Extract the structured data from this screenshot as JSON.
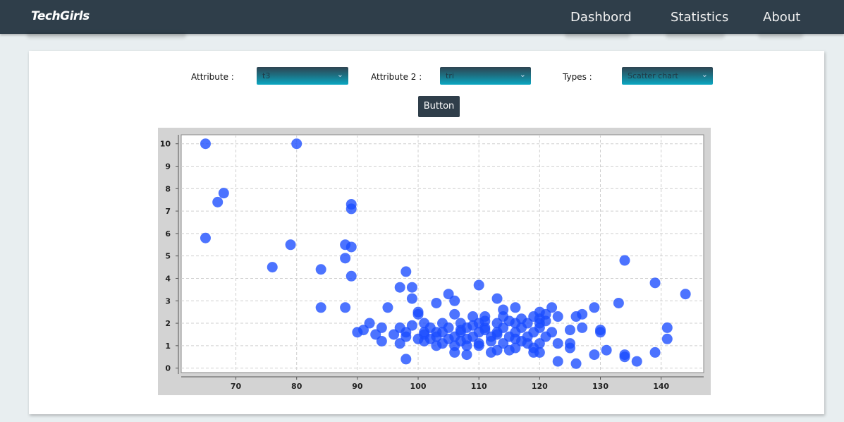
{
  "navbar": {
    "logo": "TechGirls",
    "items": [
      "Dashbord",
      "Statistics",
      "About"
    ]
  },
  "form": {
    "attribute1_label": "Attribute :",
    "attribute1_value": "t3",
    "attribute2_label": "Attribute 2 :",
    "attribute2_value": "tri",
    "types_label": "Types :",
    "types_value": "Scatter chart",
    "button_label": "Button"
  },
  "colors": {
    "navbar": "#2f3e4a",
    "point": "#1a4cff"
  },
  "chart_data": {
    "type": "scatter",
    "title": "",
    "xlabel": "",
    "ylabel": "",
    "xlim": [
      61,
      147
    ],
    "ylim": [
      -0.2,
      10.4
    ],
    "xticks": [
      70,
      80,
      90,
      100,
      110,
      120,
      130,
      140
    ],
    "yticks": [
      0,
      1,
      2,
      3,
      4,
      5,
      6,
      7,
      8,
      9,
      10
    ],
    "grid": true,
    "legend": "none",
    "points": [
      [
        65,
        10
      ],
      [
        80,
        10
      ],
      [
        68,
        7.8
      ],
      [
        67,
        7.4
      ],
      [
        89,
        7.3
      ],
      [
        89,
        7.1
      ],
      [
        65,
        5.8
      ],
      [
        79,
        5.5
      ],
      [
        88,
        5.5
      ],
      [
        89,
        5.4
      ],
      [
        88,
        4.9
      ],
      [
        76,
        4.5
      ],
      [
        84,
        4.4
      ],
      [
        98,
        4.3
      ],
      [
        89,
        4.1
      ],
      [
        134,
        4.8
      ],
      [
        139,
        3.8
      ],
      [
        144,
        3.3
      ],
      [
        97,
        3.6
      ],
      [
        99,
        3.6
      ],
      [
        110,
        3.7
      ],
      [
        105,
        3.3
      ],
      [
        113,
        3.1
      ],
      [
        99,
        3.1
      ],
      [
        106,
        3.0
      ],
      [
        103,
        2.9
      ],
      [
        133,
        2.9
      ],
      [
        84,
        2.7
      ],
      [
        88,
        2.7
      ],
      [
        95,
        2.7
      ],
      [
        122,
        2.7
      ],
      [
        129,
        2.7
      ],
      [
        116,
        2.7
      ],
      [
        114,
        2.6
      ],
      [
        100,
        2.5
      ],
      [
        100,
        2.4
      ],
      [
        106,
        2.4
      ],
      [
        120,
        2.5
      ],
      [
        127,
        2.4
      ],
      [
        126,
        2.3
      ],
      [
        121,
        2.4
      ],
      [
        109,
        2.3
      ],
      [
        111,
        2.3
      ],
      [
        114,
        2.3
      ],
      [
        119,
        2.3
      ],
      [
        123,
        2.3
      ],
      [
        92,
        2.0
      ],
      [
        101,
        2.0
      ],
      [
        104,
        2.0
      ],
      [
        107,
        2.0
      ],
      [
        110,
        2.0
      ],
      [
        113,
        2.0
      ],
      [
        116,
        2.0
      ],
      [
        118,
        2.0
      ],
      [
        120,
        2.0
      ],
      [
        99,
        1.9
      ],
      [
        97,
        1.8
      ],
      [
        94,
        1.8
      ],
      [
        102,
        1.8
      ],
      [
        105,
        1.8
      ],
      [
        108,
        1.8
      ],
      [
        111,
        1.8
      ],
      [
        114,
        1.8
      ],
      [
        117,
        1.8
      ],
      [
        120,
        1.8
      ],
      [
        125,
        1.7
      ],
      [
        127,
        1.8
      ],
      [
        141,
        1.8
      ],
      [
        91,
        1.7
      ],
      [
        90,
        1.6
      ],
      [
        98,
        1.6
      ],
      [
        101,
        1.6
      ],
      [
        104,
        1.6
      ],
      [
        107,
        1.6
      ],
      [
        110,
        1.6
      ],
      [
        113,
        1.6
      ],
      [
        116,
        1.6
      ],
      [
        119,
        1.6
      ],
      [
        122,
        1.6
      ],
      [
        130,
        1.7
      ],
      [
        130,
        1.6
      ],
      [
        93,
        1.5
      ],
      [
        96,
        1.5
      ],
      [
        101,
        1.5
      ],
      [
        103,
        1.4
      ],
      [
        106,
        1.4
      ],
      [
        109,
        1.4
      ],
      [
        112,
        1.4
      ],
      [
        115,
        1.4
      ],
      [
        118,
        1.4
      ],
      [
        121,
        1.4
      ],
      [
        98,
        1.4
      ],
      [
        141,
        1.3
      ],
      [
        94,
        1.2
      ],
      [
        97,
        1.1
      ],
      [
        101,
        1.2
      ],
      [
        104,
        1.1
      ],
      [
        107,
        1.2
      ],
      [
        110,
        1.1
      ],
      [
        112,
        1.2
      ],
      [
        114,
        1.1
      ],
      [
        117,
        1.2
      ],
      [
        120,
        1.1
      ],
      [
        123,
        1.1
      ],
      [
        125,
        1.1
      ],
      [
        103,
        1.0
      ],
      [
        106,
        1.0
      ],
      [
        108,
        1.0
      ],
      [
        110,
        1.0
      ],
      [
        116,
        0.9
      ],
      [
        119,
        0.9
      ],
      [
        125,
        0.9
      ],
      [
        113,
        0.8
      ],
      [
        115,
        0.8
      ],
      [
        106,
        0.7
      ],
      [
        108,
        0.6
      ],
      [
        112,
        0.7
      ],
      [
        119,
        0.7
      ],
      [
        120,
        0.7
      ],
      [
        129,
        0.6
      ],
      [
        131,
        0.8
      ],
      [
        134,
        0.6
      ],
      [
        134,
        0.5
      ],
      [
        139,
        0.7
      ],
      [
        98,
        0.4
      ],
      [
        123,
        0.3
      ],
      [
        126,
        0.2
      ],
      [
        136,
        0.3
      ],
      [
        102,
        1.3
      ],
      [
        105,
        1.3
      ],
      [
        108,
        1.3
      ],
      [
        111,
        1.7
      ],
      [
        109,
        1.9
      ],
      [
        115,
        2.1
      ],
      [
        117,
        2.2
      ],
      [
        121,
        2.1
      ],
      [
        103,
        1.6
      ],
      [
        100,
        1.3
      ],
      [
        111,
        2.1
      ],
      [
        113,
        1.5
      ],
      [
        118,
        1.1
      ],
      [
        107,
        1.7
      ],
      [
        116,
        1.3
      ],
      [
        120,
        2.2
      ]
    ]
  }
}
